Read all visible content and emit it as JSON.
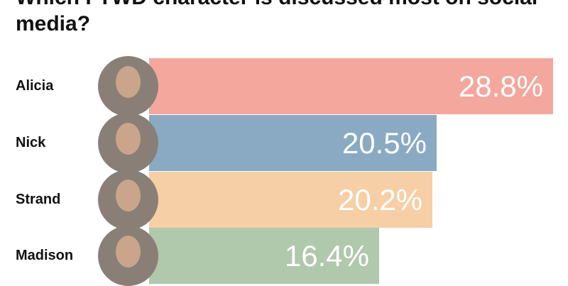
{
  "chart_data": {
    "type": "bar",
    "orientation": "horizontal",
    "title": "Which FTWD character is discussed most on social media?",
    "categories": [
      "Alicia",
      "Nick",
      "Strand",
      "Madison"
    ],
    "values": [
      28.8,
      20.5,
      20.2,
      16.4
    ],
    "value_labels": [
      "28.8%",
      "20.5%",
      "20.2%",
      "16.4%"
    ],
    "colors": [
      "#f4a79d",
      "#8aaac4",
      "#f6cfa6",
      "#b0c8ac"
    ],
    "xlim": [
      0,
      28.8
    ],
    "grid": false
  }
}
